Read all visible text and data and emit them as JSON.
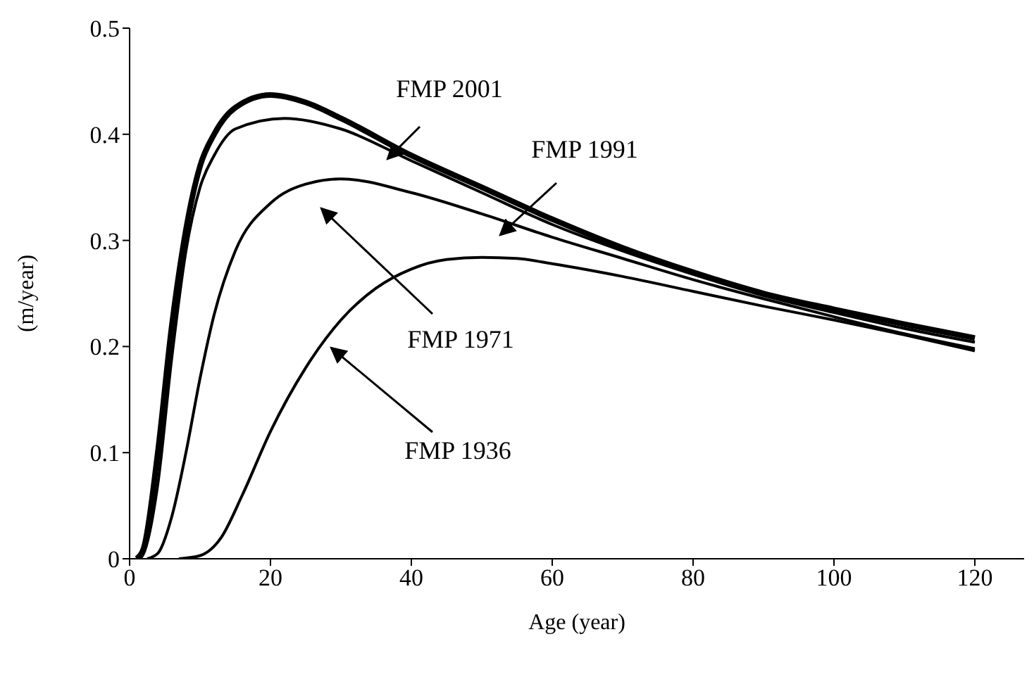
{
  "chart_data": {
    "type": "line",
    "xlabel": "Age (year)",
    "ylabel": "(m/year)",
    "xlim": [
      0,
      127
    ],
    "ylim": [
      0,
      0.5
    ],
    "xticks": [
      0,
      20,
      40,
      60,
      80,
      100,
      120
    ],
    "yticks": [
      0,
      0.1,
      0.2,
      0.3,
      0.4,
      0.5
    ],
    "marker": "none",
    "line_style": "solid",
    "series": [
      {
        "color": "#000000",
        "x": [
          1,
          2,
          4,
          6,
          8,
          10,
          12,
          15,
          20,
          25,
          30,
          40,
          50,
          60,
          70,
          80,
          90,
          100,
          110,
          120
        ],
        "values": [
          0,
          0.01,
          0.1,
          0.22,
          0.31,
          0.37,
          0.4,
          0.425,
          0.437,
          0.43,
          0.415,
          0.38,
          0.35,
          0.32,
          0.293,
          0.27,
          0.25,
          0.235,
          0.221,
          0.208
        ]
      },
      {
        "color": "#000000",
        "x": [
          1.5,
          2,
          4,
          6,
          8,
          10,
          12,
          15,
          22,
          30,
          40,
          50,
          60,
          70,
          80,
          90,
          100,
          110,
          120
        ],
        "values": [
          0,
          0.005,
          0.07,
          0.19,
          0.29,
          0.35,
          0.38,
          0.405,
          0.415,
          0.405,
          0.375,
          0.345,
          0.315,
          0.29,
          0.268,
          0.248,
          0.232,
          0.217,
          0.204
        ]
      },
      {
        "color": "#000000",
        "x": [
          2.5,
          4,
          6,
          8,
          10,
          12,
          15,
          20,
          25,
          30,
          40,
          50,
          60,
          70,
          80,
          90,
          100,
          110,
          120
        ],
        "values": [
          0,
          0.005,
          0.04,
          0.1,
          0.17,
          0.23,
          0.29,
          0.335,
          0.353,
          0.358,
          0.345,
          0.325,
          0.303,
          0.283,
          0.263,
          0.245,
          0.228,
          0.212,
          0.198
        ]
      },
      {
        "color": "#000000",
        "x": [
          7,
          10,
          13,
          16,
          20,
          25,
          30,
          35,
          40,
          45,
          50,
          55,
          60,
          70,
          80,
          90,
          100,
          110,
          120
        ],
        "values": [
          0,
          0.003,
          0.02,
          0.06,
          0.12,
          0.18,
          0.225,
          0.255,
          0.273,
          0.282,
          0.284,
          0.283,
          0.278,
          0.266,
          0.252,
          0.238,
          0.225,
          0.211,
          0.196
        ]
      }
    ],
    "annotations": [
      "FMP 2001",
      "FMP 1991",
      "FMP 1971",
      "FMP 1936"
    ]
  }
}
